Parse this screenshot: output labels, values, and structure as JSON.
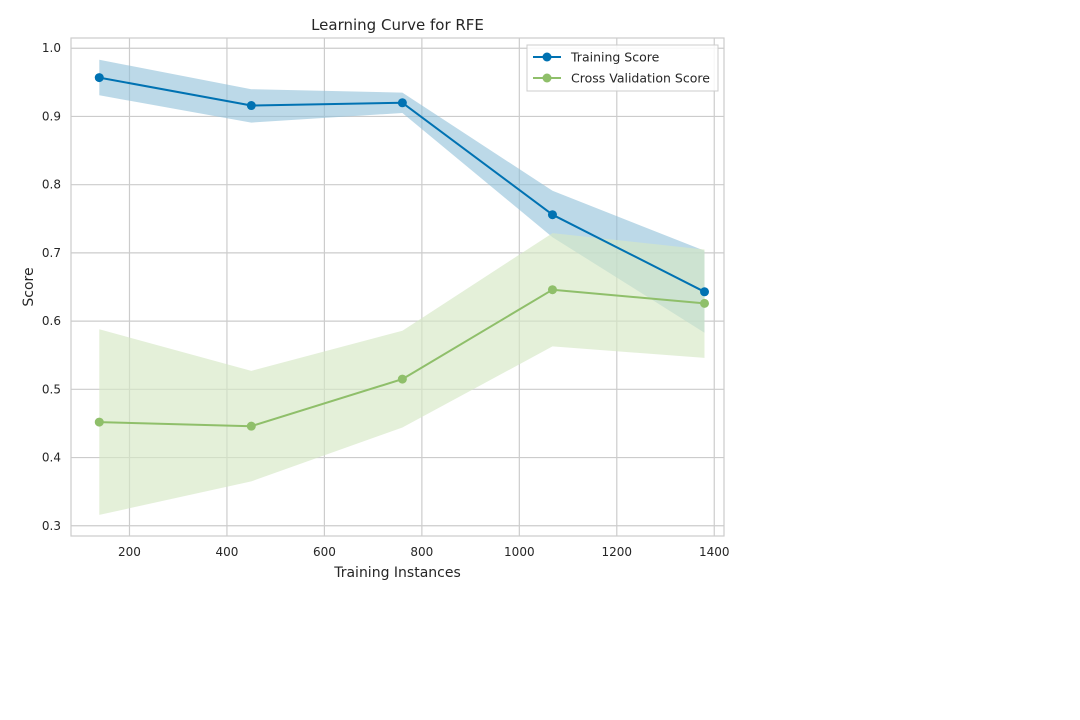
{
  "chart_data": {
    "type": "line",
    "title": "Learning Curve for RFE",
    "xlabel": "Training Instances",
    "ylabel": "Score",
    "xlim": [
      80,
      1420
    ],
    "ylim": [
      0.285,
      1.015
    ],
    "xticks": [
      200,
      400,
      600,
      800,
      1000,
      1200,
      1400
    ],
    "yticks": [
      0.3,
      0.4,
      0.5,
      0.6,
      0.7,
      0.8,
      0.9,
      1.0
    ],
    "grid": true,
    "legend_position": "top-right",
    "x": [
      138,
      450,
      760,
      1068,
      1380
    ],
    "series": [
      {
        "name": "Training Score",
        "color": "#0072b2",
        "band_color": "#8fbfd9",
        "values": [
          0.957,
          0.916,
          0.92,
          0.756,
          0.643
        ],
        "upper": [
          0.983,
          0.94,
          0.935,
          0.791,
          0.703
        ],
        "lower": [
          0.931,
          0.891,
          0.905,
          0.723,
          0.583
        ]
      },
      {
        "name": "Cross Validation Score",
        "color": "#8fbf6a",
        "band_color": "#d6e8c4",
        "values": [
          0.452,
          0.446,
          0.515,
          0.646,
          0.626
        ],
        "upper": [
          0.588,
          0.527,
          0.586,
          0.729,
          0.705
        ],
        "lower": [
          0.316,
          0.365,
          0.444,
          0.563,
          0.546
        ]
      }
    ]
  }
}
